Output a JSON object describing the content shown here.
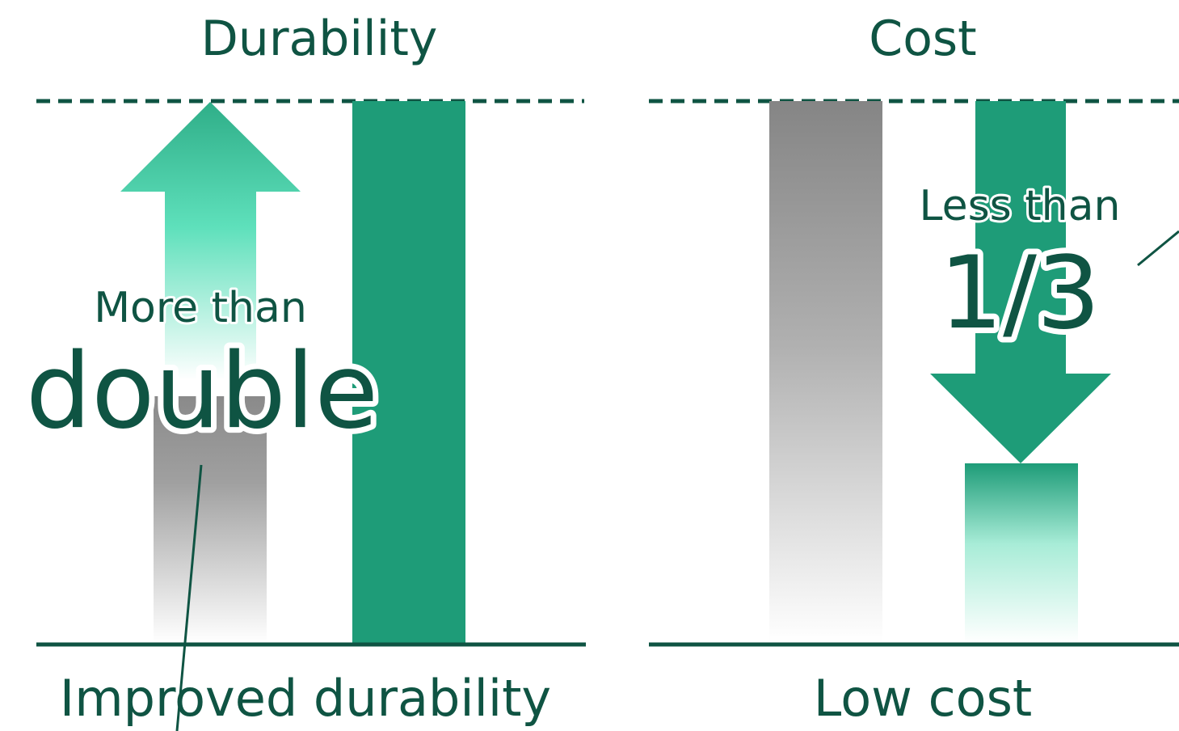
{
  "left_panel": {
    "title": "Durability",
    "callout_prefix": "More than",
    "callout_value": "double",
    "caption": "Improved durability"
  },
  "right_panel": {
    "title": "Cost",
    "callout_prefix": "Less than",
    "callout_value": "1/3",
    "caption": "Low cost"
  },
  "colors": {
    "text": "#0f5443",
    "accent": "#1e9c78",
    "arrow_light": "#5ee0bb",
    "gray": "#8a8a8a"
  }
}
